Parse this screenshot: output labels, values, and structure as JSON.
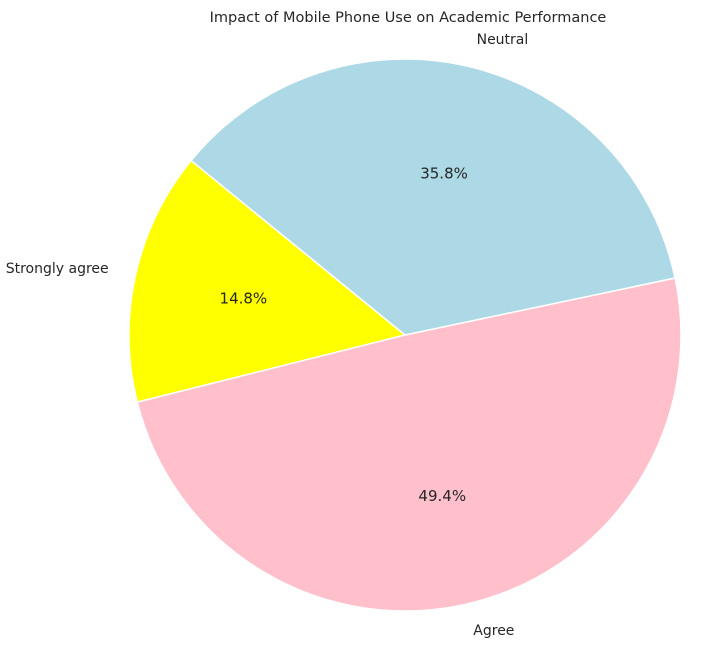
{
  "chart_data": {
    "type": "pie",
    "title": "Impact of Mobile Phone Use on Academic Performance",
    "categories": [
      "Strongly agree",
      "Agree",
      "Neutral"
    ],
    "values": [
      14.8,
      49.4,
      35.8
    ],
    "value_labels": [
      "14.8%",
      "49.4%",
      "35.8%"
    ],
    "colors": [
      "#FFFF00",
      "#FFC0CB",
      "#ADD8E6"
    ],
    "edge_color": "#FFFFFF",
    "legend": "none"
  }
}
